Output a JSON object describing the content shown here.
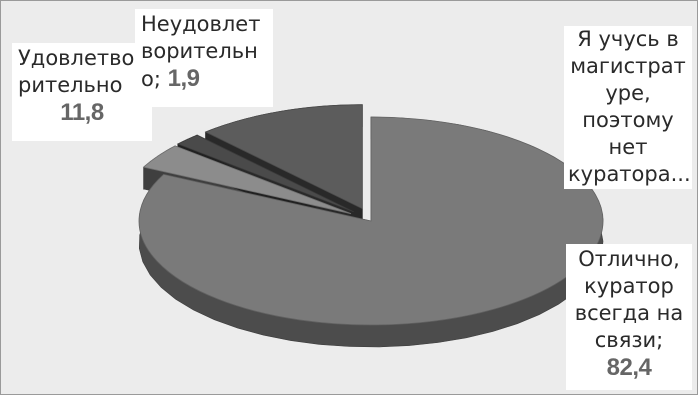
{
  "chart_data": {
    "type": "pie",
    "title": "",
    "slices": [
      {
        "label": "Отлично, куратор всегда на связи;",
        "value": 82.4,
        "value_text": "82,4",
        "color": "#7a7a7a"
      },
      {
        "label": "Я учусь в магистратуре, поэтому нет куратора...",
        "value": 3.9,
        "value_text": "",
        "color": "#8c8c8c"
      },
      {
        "label": "Неудовлетворительно;",
        "value": 1.9,
        "value_text": "1,9",
        "color": "#4a4a4a"
      },
      {
        "label": "Удовлетворительно",
        "value": 11.8,
        "value_text": "11,8",
        "color": "#5c5c5c"
      }
    ]
  },
  "labels": {
    "satisfactory": {
      "lines": [
        "Удовлетво",
        "рительно"
      ],
      "value": "11,8"
    },
    "unsatisfactory": {
      "lines": [
        "Неудовлет",
        "ворительн"
      ],
      "last_line_text": "о; ",
      "value": "1,9"
    },
    "master": {
      "lines": [
        "Я учусь в",
        "магистрат",
        "уре,",
        "поэтому",
        "нет",
        "куратора..."
      ]
    },
    "excellent": {
      "lines": [
        "Отлично,",
        "куратор",
        "всегда на",
        "связи;"
      ],
      "value": "82,4"
    }
  }
}
